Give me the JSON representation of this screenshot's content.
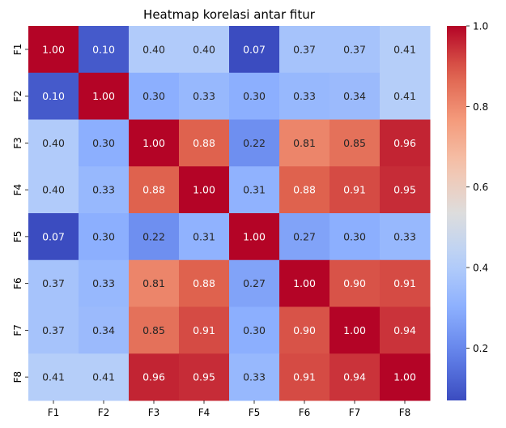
{
  "chart_data": {
    "type": "heatmap",
    "title": "Heatmap korelasi antar fitur",
    "x_labels": [
      "F1",
      "F2",
      "F3",
      "F4",
      "F5",
      "F6",
      "F7",
      "F8"
    ],
    "y_labels": [
      "F1",
      "F2",
      "F3",
      "F4",
      "F5",
      "F6",
      "F7",
      "F8"
    ],
    "values": [
      [
        1.0,
        0.1,
        0.4,
        0.4,
        0.07,
        0.37,
        0.37,
        0.41
      ],
      [
        0.1,
        1.0,
        0.3,
        0.33,
        0.3,
        0.33,
        0.34,
        0.41
      ],
      [
        0.4,
        0.3,
        1.0,
        0.88,
        0.22,
        0.81,
        0.85,
        0.96
      ],
      [
        0.4,
        0.33,
        0.88,
        1.0,
        0.31,
        0.88,
        0.91,
        0.95
      ],
      [
        0.07,
        0.3,
        0.22,
        0.31,
        1.0,
        0.27,
        0.3,
        0.33
      ],
      [
        0.37,
        0.33,
        0.81,
        0.88,
        0.27,
        1.0,
        0.9,
        0.91
      ],
      [
        0.37,
        0.34,
        0.85,
        0.91,
        0.3,
        0.9,
        1.0,
        0.94
      ],
      [
        0.41,
        0.41,
        0.96,
        0.95,
        0.33,
        0.91,
        0.94,
        1.0
      ]
    ],
    "value_labels": [
      [
        "1.00",
        "0.10",
        "0.40",
        "0.40",
        "0.07",
        "0.37",
        "0.37",
        "0.41"
      ],
      [
        "0.10",
        "1.00",
        "0.30",
        "0.33",
        "0.30",
        "0.33",
        "0.34",
        "0.41"
      ],
      [
        "0.40",
        "0.30",
        "1.00",
        "0.88",
        "0.22",
        "0.81",
        "0.85",
        "0.96"
      ],
      [
        "0.40",
        "0.33",
        "0.88",
        "1.00",
        "0.31",
        "0.88",
        "0.91",
        "0.95"
      ],
      [
        "0.07",
        "0.30",
        "0.22",
        "0.31",
        "1.00",
        "0.27",
        "0.30",
        "0.33"
      ],
      [
        "0.37",
        "0.33",
        "0.81",
        "0.88",
        "0.27",
        "1.00",
        "0.90",
        "0.91"
      ],
      [
        "0.37",
        "0.34",
        "0.85",
        "0.91",
        "0.30",
        "0.90",
        "1.00",
        "0.94"
      ],
      [
        "0.41",
        "0.41",
        "0.96",
        "0.95",
        "0.33",
        "0.91",
        "0.94",
        "1.00"
      ]
    ],
    "colormap": "coolwarm",
    "vmin": 0.07,
    "vmax": 1.0,
    "colorbar_ticks": [
      0.2,
      0.4,
      0.6,
      0.8,
      1.0
    ],
    "colorbar_tick_labels": [
      "0.2",
      "0.4",
      "0.6",
      "0.8",
      "1.0"
    ],
    "legend": "colorbar-right",
    "grid": false
  }
}
